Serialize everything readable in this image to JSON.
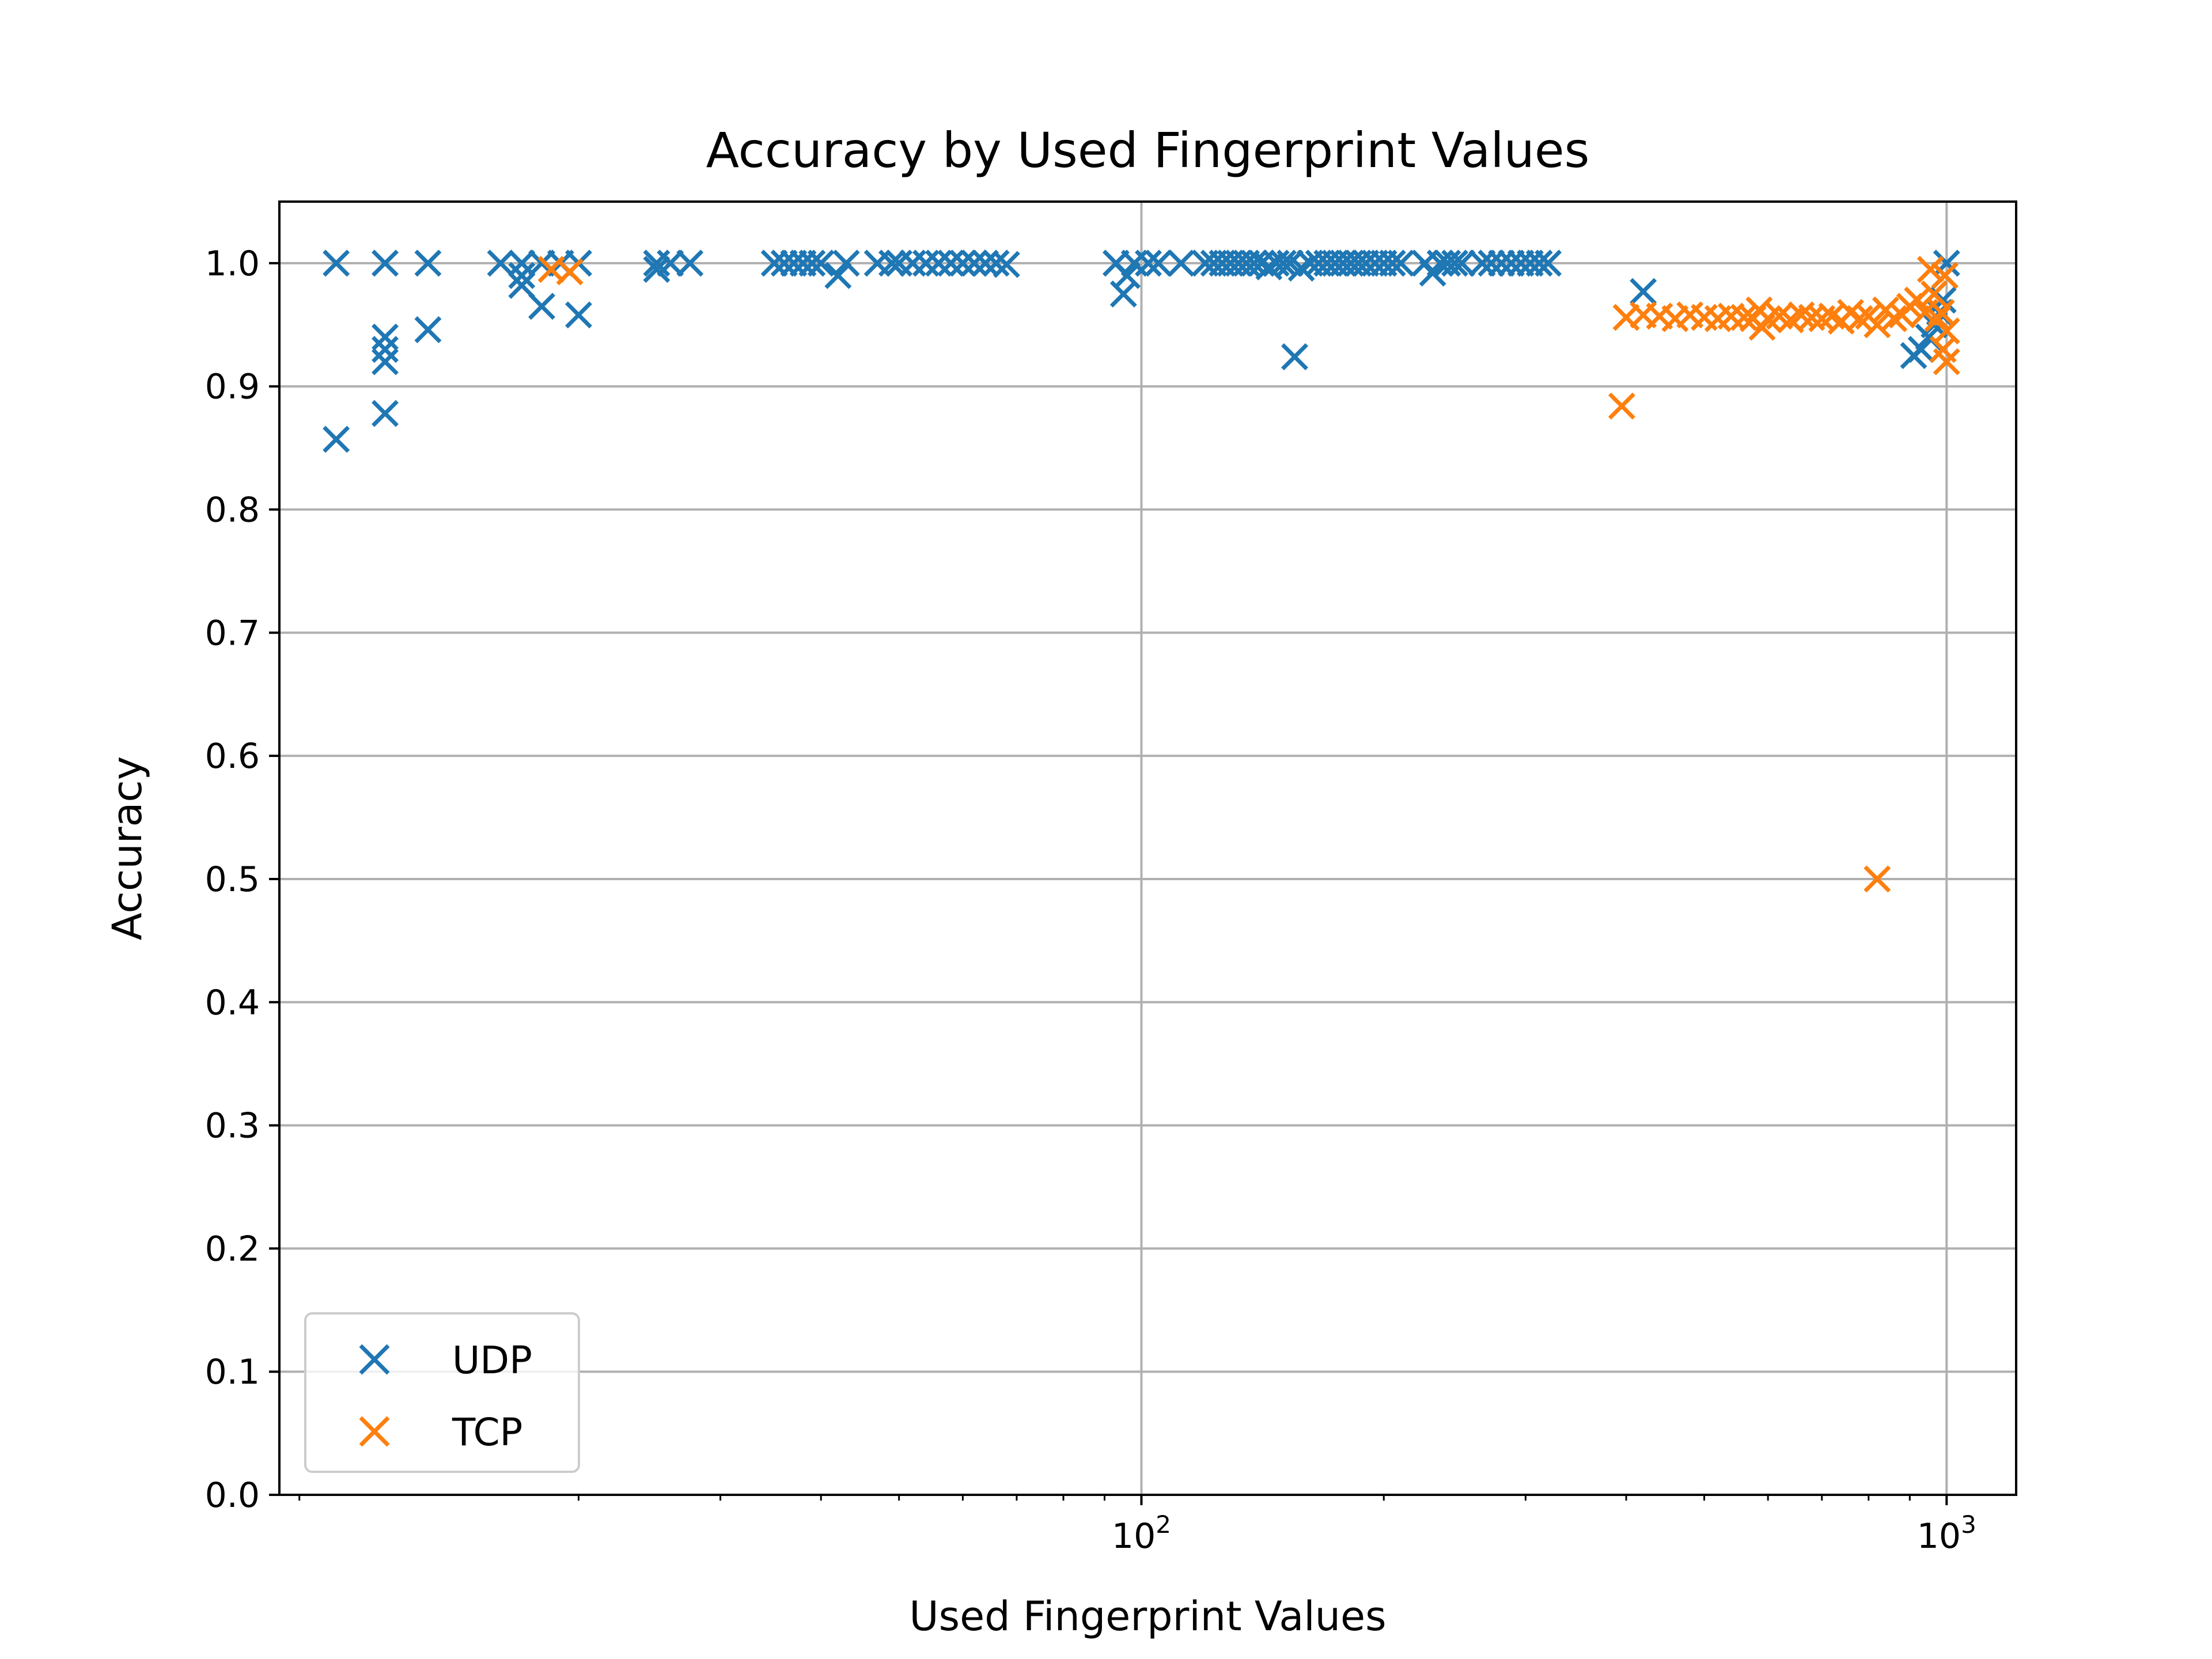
{
  "chart_data": {
    "type": "scatter",
    "title": "Accuracy by Used Fingerprint Values",
    "xlabel": "Used Fingerprint Values",
    "ylabel": "Accuracy",
    "xscale": "log",
    "xlim": [
      8.5,
      1220
    ],
    "ylim": [
      0.0,
      1.05
    ],
    "yticks": [
      "0.0",
      "0.1",
      "0.2",
      "0.3",
      "0.4",
      "0.5",
      "0.6",
      "0.7",
      "0.8",
      "0.9",
      "1.0"
    ],
    "xticks": [
      {
        "base": "10",
        "exp": "2",
        "value": 100
      },
      {
        "base": "10",
        "exp": "3",
        "value": 1000
      }
    ],
    "grid": true,
    "legend_position": "lower-left",
    "marker": "x",
    "series": [
      {
        "name": "UDP",
        "color": "#1f77b4",
        "points": [
          [
            10,
            1.0
          ],
          [
            10,
            0.857
          ],
          [
            11.5,
            1.0
          ],
          [
            11.5,
            0.94
          ],
          [
            11.5,
            0.93
          ],
          [
            11.5,
            0.92
          ],
          [
            11.5,
            0.878
          ],
          [
            13,
            1.0
          ],
          [
            13,
            0.946
          ],
          [
            16,
            1.0
          ],
          [
            17,
            1.0
          ],
          [
            17,
            0.99
          ],
          [
            17,
            0.982
          ],
          [
            18,
            1.0
          ],
          [
            18,
            0.965
          ],
          [
            19,
            1.0
          ],
          [
            20,
            1.0
          ],
          [
            20,
            0.958
          ],
          [
            25,
            1.0
          ],
          [
            25,
            0.995
          ],
          [
            26,
            1.0
          ],
          [
            27.5,
            1.0
          ],
          [
            35,
            1.0
          ],
          [
            36,
            1.0
          ],
          [
            37,
            1.0
          ],
          [
            38,
            1.0
          ],
          [
            39,
            1.0
          ],
          [
            40,
            1.0
          ],
          [
            42,
            0.99
          ],
          [
            43,
            1.0
          ],
          [
            47,
            1.0
          ],
          [
            49,
            1.0
          ],
          [
            50,
            1.0
          ],
          [
            52,
            1.0
          ],
          [
            54,
            1.0
          ],
          [
            56,
            1.0
          ],
          [
            58,
            1.0
          ],
          [
            60,
            1.0
          ],
          [
            62,
            1.0
          ],
          [
            64,
            1.0
          ],
          [
            66,
            1.0
          ],
          [
            68,
            0.999
          ],
          [
            93,
            1.0
          ],
          [
            95,
            0.975
          ],
          [
            96,
            0.99
          ],
          [
            98,
            1.0
          ],
          [
            102,
            1.0
          ],
          [
            105,
            1.0
          ],
          [
            112,
            1.0
          ],
          [
            120,
            1.0
          ],
          [
            123,
            1.0
          ],
          [
            126,
            1.0
          ],
          [
            129,
            1.0
          ],
          [
            132,
            1.0
          ],
          [
            135,
            1.0
          ],
          [
            138,
            1.0
          ],
          [
            141,
            1.0
          ],
          [
            144,
            0.997
          ],
          [
            147,
            1.0
          ],
          [
            150,
            1.0
          ],
          [
            153,
            1.0
          ],
          [
            155,
            0.924
          ],
          [
            158,
            0.996
          ],
          [
            162,
            1.0
          ],
          [
            166,
            1.0
          ],
          [
            170,
            1.0
          ],
          [
            174,
            1.0
          ],
          [
            178,
            1.0
          ],
          [
            182,
            1.0
          ],
          [
            186,
            1.0
          ],
          [
            190,
            1.0
          ],
          [
            195,
            1.0
          ],
          [
            200,
            1.0
          ],
          [
            205,
            1.0
          ],
          [
            210,
            1.0
          ],
          [
            225,
            1.0
          ],
          [
            230,
            0.992
          ],
          [
            235,
            1.0
          ],
          [
            240,
            1.0
          ],
          [
            245,
            1.0
          ],
          [
            250,
            1.0
          ],
          [
            265,
            1.0
          ],
          [
            272,
            1.0
          ],
          [
            280,
            1.0
          ],
          [
            288,
            1.0
          ],
          [
            296,
            1.0
          ],
          [
            304,
            1.0
          ],
          [
            312,
            1.0
          ],
          [
            320,
            1.0
          ],
          [
            420,
            0.977
          ],
          [
            910,
            0.925
          ],
          [
            930,
            0.93
          ],
          [
            950,
            0.94
          ],
          [
            965,
            0.95
          ],
          [
            980,
            0.96
          ],
          [
            990,
            0.97
          ],
          [
            1000,
            1.0
          ],
          [
            995,
            0.99
          ]
        ]
      },
      {
        "name": "TCP",
        "color": "#ff7f0e",
        "points": [
          [
            18.5,
            0.995
          ],
          [
            19.5,
            0.993
          ],
          [
            395,
            0.884
          ],
          [
            400,
            0.956
          ],
          [
            420,
            0.958
          ],
          [
            440,
            0.957
          ],
          [
            460,
            0.955
          ],
          [
            480,
            0.958
          ],
          [
            500,
            0.956
          ],
          [
            520,
            0.955
          ],
          [
            540,
            0.957
          ],
          [
            560,
            0.956
          ],
          [
            575,
            0.955
          ],
          [
            585,
            0.962
          ],
          [
            590,
            0.948
          ],
          [
            600,
            0.955
          ],
          [
            620,
            0.957
          ],
          [
            640,
            0.954
          ],
          [
            660,
            0.958
          ],
          [
            680,
            0.956
          ],
          [
            700,
            0.955
          ],
          [
            720,
            0.957
          ],
          [
            740,
            0.953
          ],
          [
            760,
            0.96
          ],
          [
            780,
            0.955
          ],
          [
            800,
            0.957
          ],
          [
            820,
            0.95
          ],
          [
            840,
            0.962
          ],
          [
            860,
            0.955
          ],
          [
            880,
            0.958
          ],
          [
            900,
            0.965
          ],
          [
            920,
            0.97
          ],
          [
            940,
            0.96
          ],
          [
            955,
            0.995
          ],
          [
            965,
            0.975
          ],
          [
            975,
            0.955
          ],
          [
            985,
            0.96
          ],
          [
            995,
            0.99
          ],
          [
            1000,
            0.945
          ],
          [
            1000,
            0.92
          ],
          [
            990,
            0.93
          ],
          [
            820,
            0.5
          ]
        ]
      }
    ]
  }
}
